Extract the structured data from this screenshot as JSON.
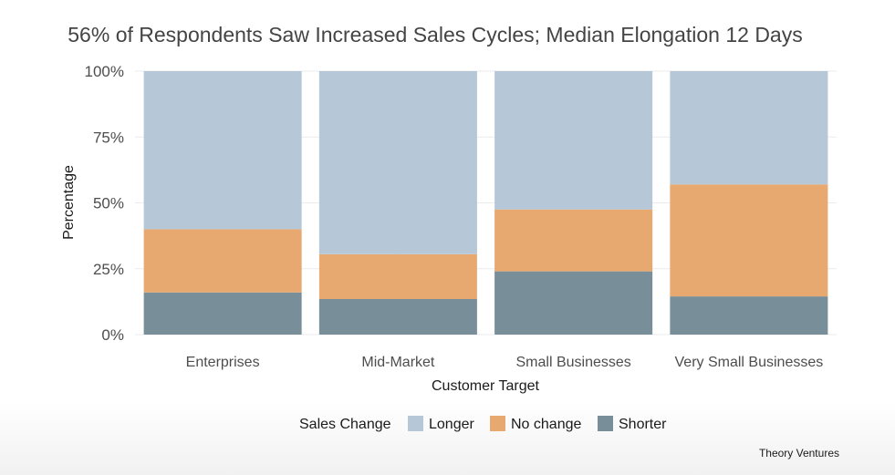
{
  "chart_data": {
    "type": "bar",
    "stacked": true,
    "title": "56% of Respondents Saw Increased Sales Cycles; Median Elongation 12 Days",
    "xlabel": "Customer Target",
    "ylabel": "Percentage",
    "categories": [
      "Enterprises",
      "Mid-Market",
      "Small Businesses",
      "Very Small Businesses"
    ],
    "ylim": [
      0,
      100
    ],
    "yticks": [
      0,
      25,
      50,
      75,
      100
    ],
    "ytick_labels": [
      "0%",
      "25%",
      "50%",
      "75%",
      "100%"
    ],
    "series": [
      {
        "name": "Shorter",
        "color": "#788e98",
        "values": [
          16,
          13.5,
          24,
          14.5
        ]
      },
      {
        "name": "No change",
        "color": "#e7a96f",
        "values": [
          24,
          17,
          23.5,
          42.5
        ]
      },
      {
        "name": "Longer",
        "color": "#b6c7d8",
        "values": [
          60,
          69.5,
          52.5,
          43
        ]
      }
    ],
    "legend": {
      "title": "Sales Change",
      "position": "bottom",
      "order": [
        "Longer",
        "No change",
        "Shorter"
      ]
    },
    "grid": true,
    "source": "Theory Ventures"
  }
}
